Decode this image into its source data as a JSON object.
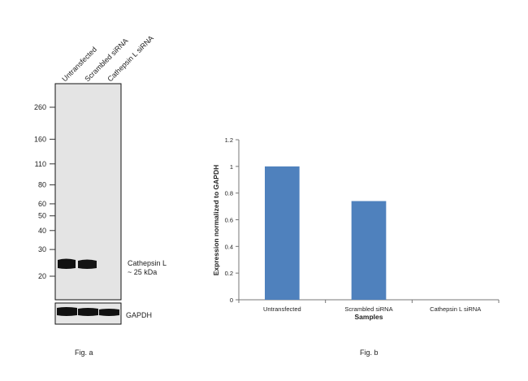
{
  "fig_a": {
    "caption": "Fig. a",
    "lanes": [
      "Untransfected",
      "Scrambled siRNA",
      "Cathepsin L siRNA"
    ],
    "markers_kda": [
      260,
      160,
      110,
      80,
      60,
      50,
      40,
      30,
      20
    ],
    "band_label_line1": "Cathepsin L",
    "band_label_line2": "~ 25 kDa",
    "loading_label": "GAPDH"
  },
  "chart_data": {
    "type": "bar",
    "categories": [
      "Untransfected",
      "Scrambled siRNA",
      "Cathepsin L siRNA"
    ],
    "values": [
      1.0,
      0.74,
      0.0
    ],
    "title": "",
    "xlabel": "Samples",
    "ylabel": "Expression normalized to GAPDH",
    "ylim": [
      0,
      1.2
    ],
    "yticks": [
      0,
      0.2,
      0.4,
      0.6,
      0.8,
      1,
      1.2
    ],
    "bar_color": "#4f81bd",
    "grid": false,
    "legend": "none",
    "caption": "Fig. b"
  }
}
